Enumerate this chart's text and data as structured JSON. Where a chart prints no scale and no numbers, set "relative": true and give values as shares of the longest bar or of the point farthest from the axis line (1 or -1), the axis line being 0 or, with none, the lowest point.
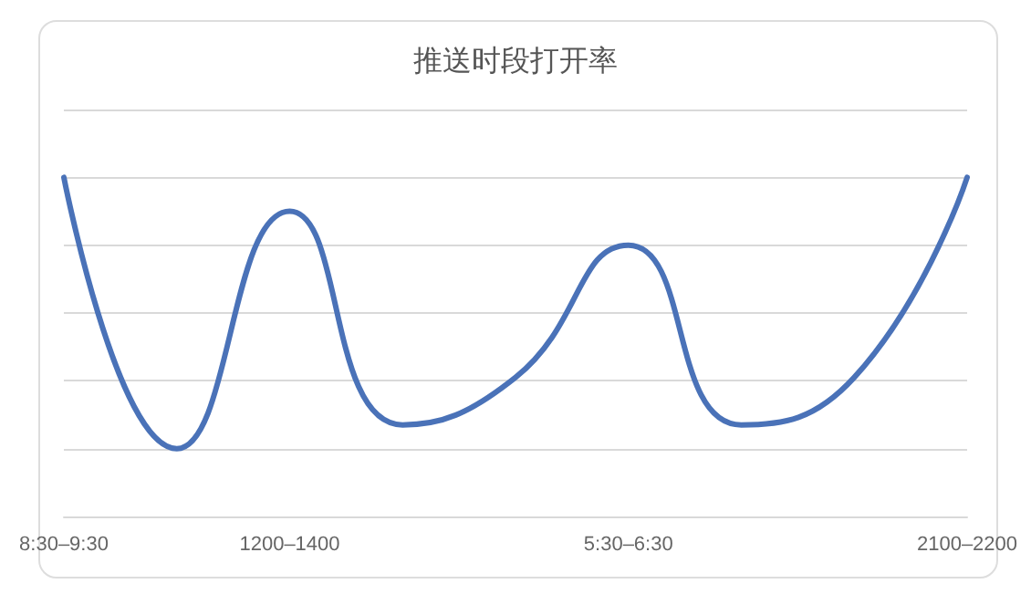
{
  "chart_data": {
    "type": "line",
    "title": "推送时段打开率",
    "relative": true,
    "categories": [
      "8:30–9:30",
      null,
      "1200–1400",
      null,
      null,
      "5:30–6:30",
      null,
      null,
      "2100–2200"
    ],
    "series": [
      {
        "color": "#4a72b8",
        "values": [
          1,
          0.2,
          0.9,
          0.27,
          0.41,
          0.8,
          0.27,
          0.41,
          1
        ]
      }
    ],
    "grid": "y",
    "marker": "none",
    "line_style": "solid"
  }
}
